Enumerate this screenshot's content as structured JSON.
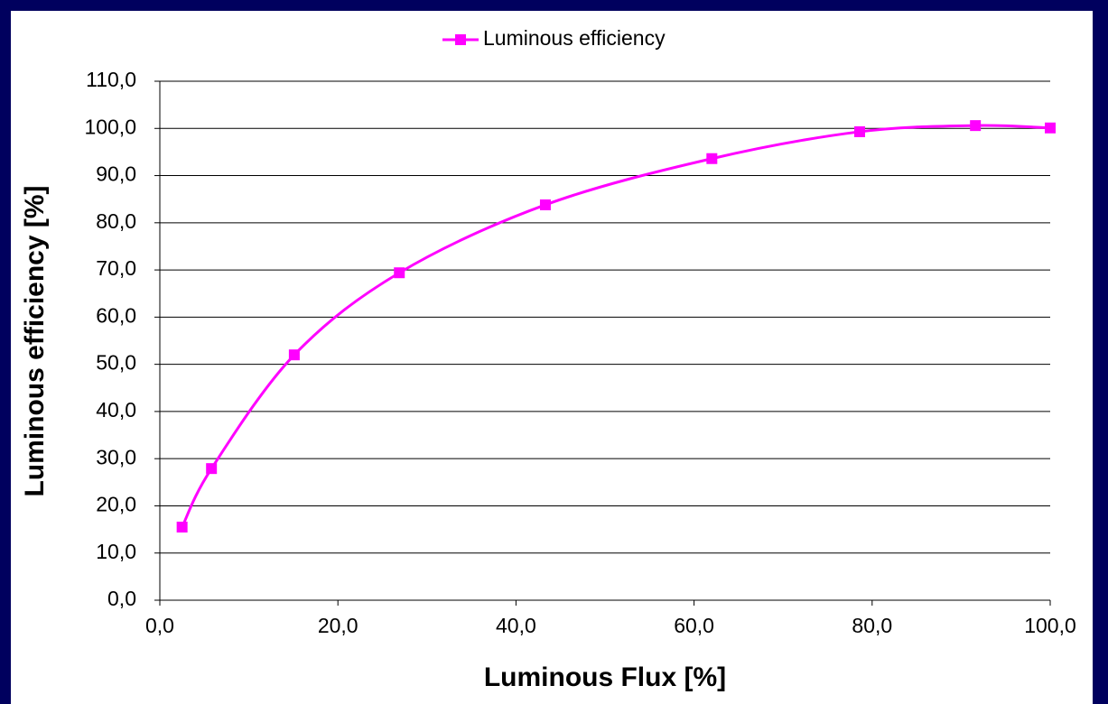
{
  "chart_data": {
    "type": "line",
    "x_label": "Luminous Flux [%]",
    "y_label": "Luminous efficiency [%]",
    "x": [
      2.5,
      5.8,
      15.1,
      26.9,
      43.3,
      62.0,
      78.6,
      91.6,
      100.0
    ],
    "series": [
      {
        "name": "Luminous efficiency",
        "color": "#ff00ff",
        "values": [
          15.5,
          27.9,
          52.0,
          69.4,
          83.8,
          93.6,
          99.3,
          100.6,
          100.1
        ]
      }
    ],
    "xlim": [
      0,
      100
    ],
    "xticks": [
      {
        "value": 0,
        "label": "0,0"
      },
      {
        "value": 20,
        "label": "20,0"
      },
      {
        "value": 40,
        "label": "40,0"
      },
      {
        "value": 60,
        "label": "60,0"
      },
      {
        "value": 80,
        "label": "80,0"
      },
      {
        "value": 100,
        "label": "100,0"
      }
    ],
    "ylim": [
      0,
      110
    ],
    "yticks": [
      {
        "value": 0,
        "label": "0,0"
      },
      {
        "value": 10,
        "label": "10,0"
      },
      {
        "value": 20,
        "label": "20,0"
      },
      {
        "value": 30,
        "label": "30,0"
      },
      {
        "value": 40,
        "label": "40,0"
      },
      {
        "value": 50,
        "label": "50,0"
      },
      {
        "value": 60,
        "label": "60,0"
      },
      {
        "value": 70,
        "label": "70,0"
      },
      {
        "value": 80,
        "label": "80,0"
      },
      {
        "value": 90,
        "label": "90,0"
      },
      {
        "value": 100,
        "label": "100,0"
      },
      {
        "value": 110,
        "label": "110,0"
      }
    ],
    "grid": true,
    "legend": "top",
    "smooth": true
  }
}
